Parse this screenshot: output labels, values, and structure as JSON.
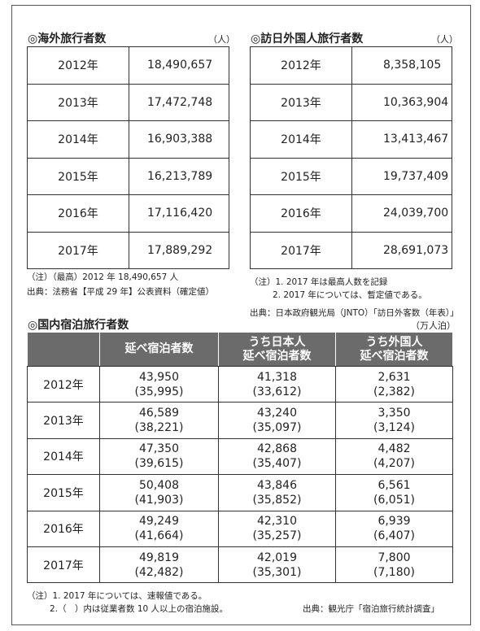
{
  "outbound": {
    "title": "◎海外旅行者数",
    "unit": "（人）",
    "rows": [
      [
        "2012年",
        "18,490,657"
      ],
      [
        "2013年",
        "17,472,748"
      ],
      [
        "2014年",
        "16,903,388"
      ],
      [
        "2015年",
        "16,213,789"
      ],
      [
        "2016年",
        "17,116,420"
      ],
      [
        "2017年",
        "17,889,292"
      ]
    ],
    "notes": [
      "（注）（最高）2012 年 18,490,657 人",
      "出典：法務省【平成 29 年】公表資料（確定値）"
    ]
  },
  "inbound": {
    "title": "◎訪日外国人旅行者数",
    "unit": "（人）",
    "rows": [
      [
        "2012年",
        "8,358,105"
      ],
      [
        "2013年",
        "10,363,904"
      ],
      [
        "2014年",
        "13,413,467"
      ],
      [
        "2015年",
        "19,737,409"
      ],
      [
        "2016年",
        "24,039,700"
      ],
      [
        "2017年",
        "28,691,073"
      ]
    ],
    "notes": [
      "（注）1. 2017 年は最高人数を記録",
      "2. 2017 年については、暫定値である。",
      "出典：日本政府観光局（JNTO）「訪日外客数（年表）」"
    ]
  },
  "lodging": {
    "title": "◎国内宿泊旅行者数",
    "unit": "（万人泊）",
    "header": [
      [
        "延べ宿泊者数"
      ],
      [
        "うち日本人",
        "延べ宿泊者数"
      ],
      [
        "うち外国人",
        "延べ宿泊者数"
      ]
    ],
    "rows": [
      [
        "2012年",
        [
          "43,950",
          "(35,995)"
        ],
        [
          "41,318",
          "(33,612)"
        ],
        [
          "2,631",
          "(2,382)"
        ]
      ],
      [
        "2013年",
        [
          "46,589",
          "(38,221)"
        ],
        [
          "43,240",
          "(35,097)"
        ],
        [
          "3,350",
          "(3,124)"
        ]
      ],
      [
        "2014年",
        [
          "47,350",
          "(39,615)"
        ],
        [
          "42,868",
          "(35,407)"
        ],
        [
          "4,482",
          "(4,207)"
        ]
      ],
      [
        "2015年",
        [
          "50,408",
          "(41,903)"
        ],
        [
          "43,846",
          "(35,852)"
        ],
        [
          "6,561",
          "(6,051)"
        ]
      ],
      [
        "2016年",
        [
          "49,249",
          "(41,664)"
        ],
        [
          "42,310",
          "(35,257)"
        ],
        [
          "6,939",
          "(6,407)"
        ]
      ],
      [
        "2017年",
        [
          "49,819",
          "(42,482)"
        ],
        [
          "42,019",
          "(35,301)"
        ],
        [
          "7,800",
          "(7,180)"
        ]
      ]
    ],
    "notes": [
      "（注）1. 2017 年については、速報値である。",
      "2.（　）内は従業者数 10 人以上の宿泊施設。"
    ],
    "source": "出典：観光庁「宿泊旅行統計調査」"
  }
}
